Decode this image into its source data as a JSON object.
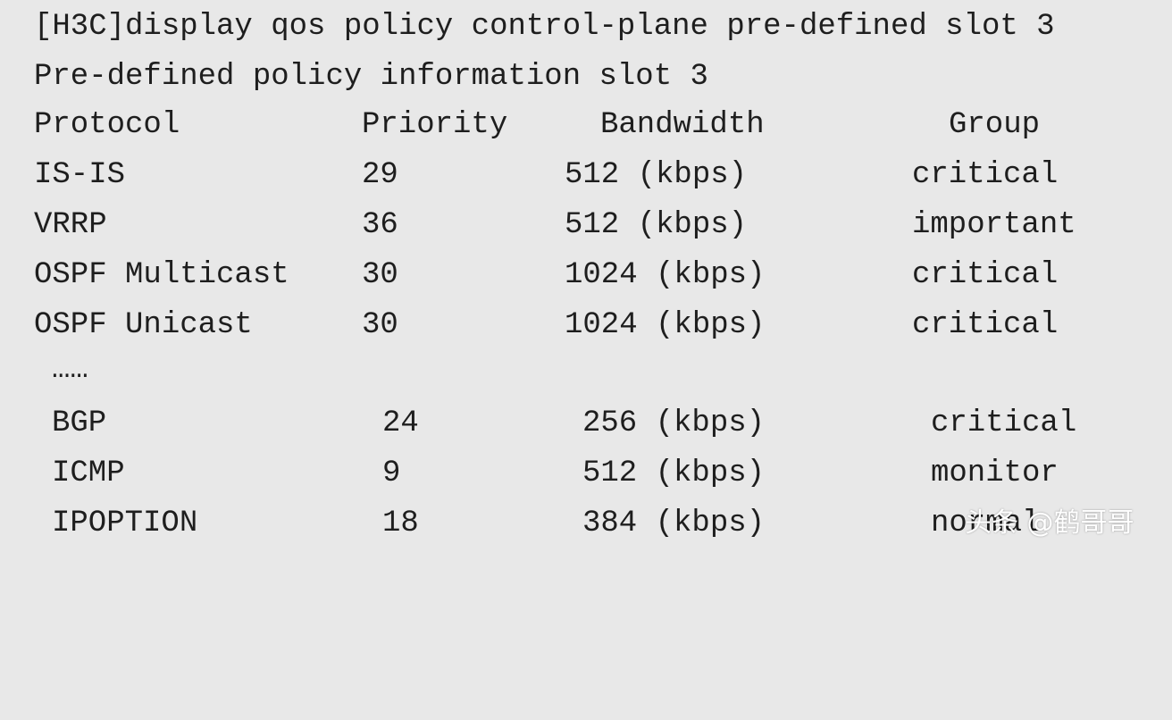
{
  "terminal": {
    "command": "[H3C]display qos policy control-plane pre-defined slot 3",
    "subtitle": "Pre-defined policy information slot 3",
    "headers": {
      "protocol": "Protocol",
      "priority": "Priority",
      "bandwidth": "Bandwidth",
      "group": "Group"
    },
    "rows": [
      {
        "protocol": "IS-IS",
        "priority": "29",
        "bandwidth": "512 (kbps)",
        "group": "critical"
      },
      {
        "protocol": "VRRP",
        "priority": "36",
        "bandwidth": "512 (kbps)",
        "group": "important"
      },
      {
        "protocol": "OSPF Multicast",
        "priority": "30",
        "bandwidth": "1024 (kbps)",
        "group": "critical"
      },
      {
        "protocol": "OSPF Unicast",
        "priority": "30",
        "bandwidth": "1024 (kbps)",
        "group": "critical"
      }
    ],
    "ellipsis": "……",
    "rows2": [
      {
        "protocol": "BGP",
        "priority": "24",
        "bandwidth": "256 (kbps)",
        "group": "critical"
      },
      {
        "protocol": "ICMP",
        "priority": "9",
        "bandwidth": "512 (kbps)",
        "group": "monitor"
      },
      {
        "protocol": "IPOPTION",
        "priority": "18",
        "bandwidth": "384 (kbps)",
        "group": "normal"
      }
    ]
  },
  "watermark": "头条 @鹤哥哥"
}
